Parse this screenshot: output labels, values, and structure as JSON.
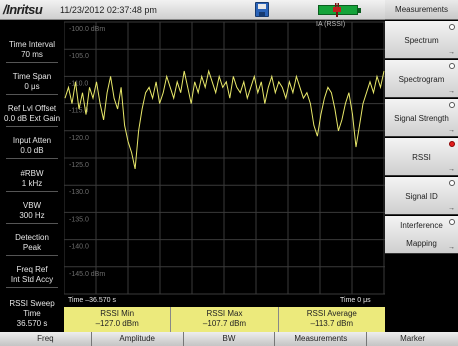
{
  "header": {
    "brand": "/Inritsu",
    "datetime": "11/23/2012 02:37:48 pm",
    "icons": [
      "save-icon",
      "battery-icon",
      "plug-icon"
    ]
  },
  "plot": {
    "trace_label": "IA (RSSI)",
    "y_ticks": [
      "-100.0 dBm",
      "-105.0",
      "-110.0",
      "-115.0",
      "-120.0",
      "-125.0",
      "-130.0",
      "-135.0",
      "-140.0",
      "-145.0 dBm"
    ],
    "time_left": "Time –36.570 s",
    "time_right": "Time  0 μs",
    "trace_color": "#e8e86a"
  },
  "chart_data": {
    "type": "line",
    "ylim": [
      -150,
      -100
    ],
    "y_ticks": [
      -100,
      -105,
      -110,
      -115,
      -120,
      -125,
      -130,
      -135,
      -140,
      -145
    ],
    "xlim": [
      -36.57,
      0
    ],
    "series": [
      {
        "values": [
          -114,
          -112,
          -115,
          -111,
          -116,
          -113,
          -117,
          -112,
          -114,
          -111,
          -115,
          -118,
          -113,
          -110,
          -114,
          -116,
          -112,
          -119,
          -122,
          -124,
          -127,
          -120,
          -116,
          -113,
          -112,
          -114,
          -111,
          -115,
          -113,
          -110,
          -112,
          -114,
          -111,
          -113,
          -109,
          -112,
          -115,
          -111,
          -113,
          -110,
          -112,
          -109,
          -111,
          -113,
          -110,
          -112,
          -111,
          -114,
          -110,
          -112,
          -113,
          -111,
          -114,
          -112,
          -110,
          -113,
          -111,
          -115,
          -112,
          -110,
          -113,
          -111,
          -112,
          -114,
          -111,
          -113,
          -110,
          -112,
          -114,
          -113,
          -115,
          -119,
          -121,
          -117,
          -114,
          -112,
          -113,
          -116,
          -120,
          -118,
          -115,
          -113,
          -117,
          -123,
          -119,
          -115,
          -113,
          -111,
          -113,
          -110,
          -112,
          -109
        ]
      }
    ],
    "rssi_min": -127.0,
    "rssi_max": -107.7,
    "rssi_average": -113.7
  },
  "left_params": [
    {
      "label": "Time Interval",
      "value": "70 ms"
    },
    {
      "label": "Time Span",
      "value": "0 μs"
    },
    {
      "label": "Ref Lvl Offset",
      "value": "0.0 dB Ext Gain"
    },
    {
      "label": "Input Atten",
      "value": "0.0 dB"
    },
    {
      "label": "#RBW",
      "value": "1 kHz"
    },
    {
      "label": "VBW",
      "value": "300 Hz"
    },
    {
      "label": "Detection",
      "value": "Peak"
    },
    {
      "label": "Freq Ref",
      "value": "Int Std Accy"
    },
    {
      "label": "RSSI Sweep Time",
      "value": "36.570 s"
    }
  ],
  "readouts": [
    {
      "label": "RSSI Min",
      "value": "–127.0 dBm"
    },
    {
      "label": "RSSI Max",
      "value": "–107.7 dBm"
    },
    {
      "label": "RSSI Average",
      "value": "–113.7 dBm"
    }
  ],
  "menu": {
    "title": "Measurements",
    "items": [
      {
        "label": "Spectrum",
        "selected": false
      },
      {
        "label": "Spectrogram",
        "selected": false
      },
      {
        "label": "Signal Strength",
        "selected": false
      },
      {
        "label": "RSSI",
        "selected": true
      },
      {
        "label": "Signal ID",
        "selected": false
      },
      {
        "label": "Interference",
        "label2": "Mapping",
        "selected": false
      }
    ]
  },
  "tabs": [
    "Freq",
    "Amplitude",
    "BW",
    "Measurements",
    "Marker"
  ]
}
